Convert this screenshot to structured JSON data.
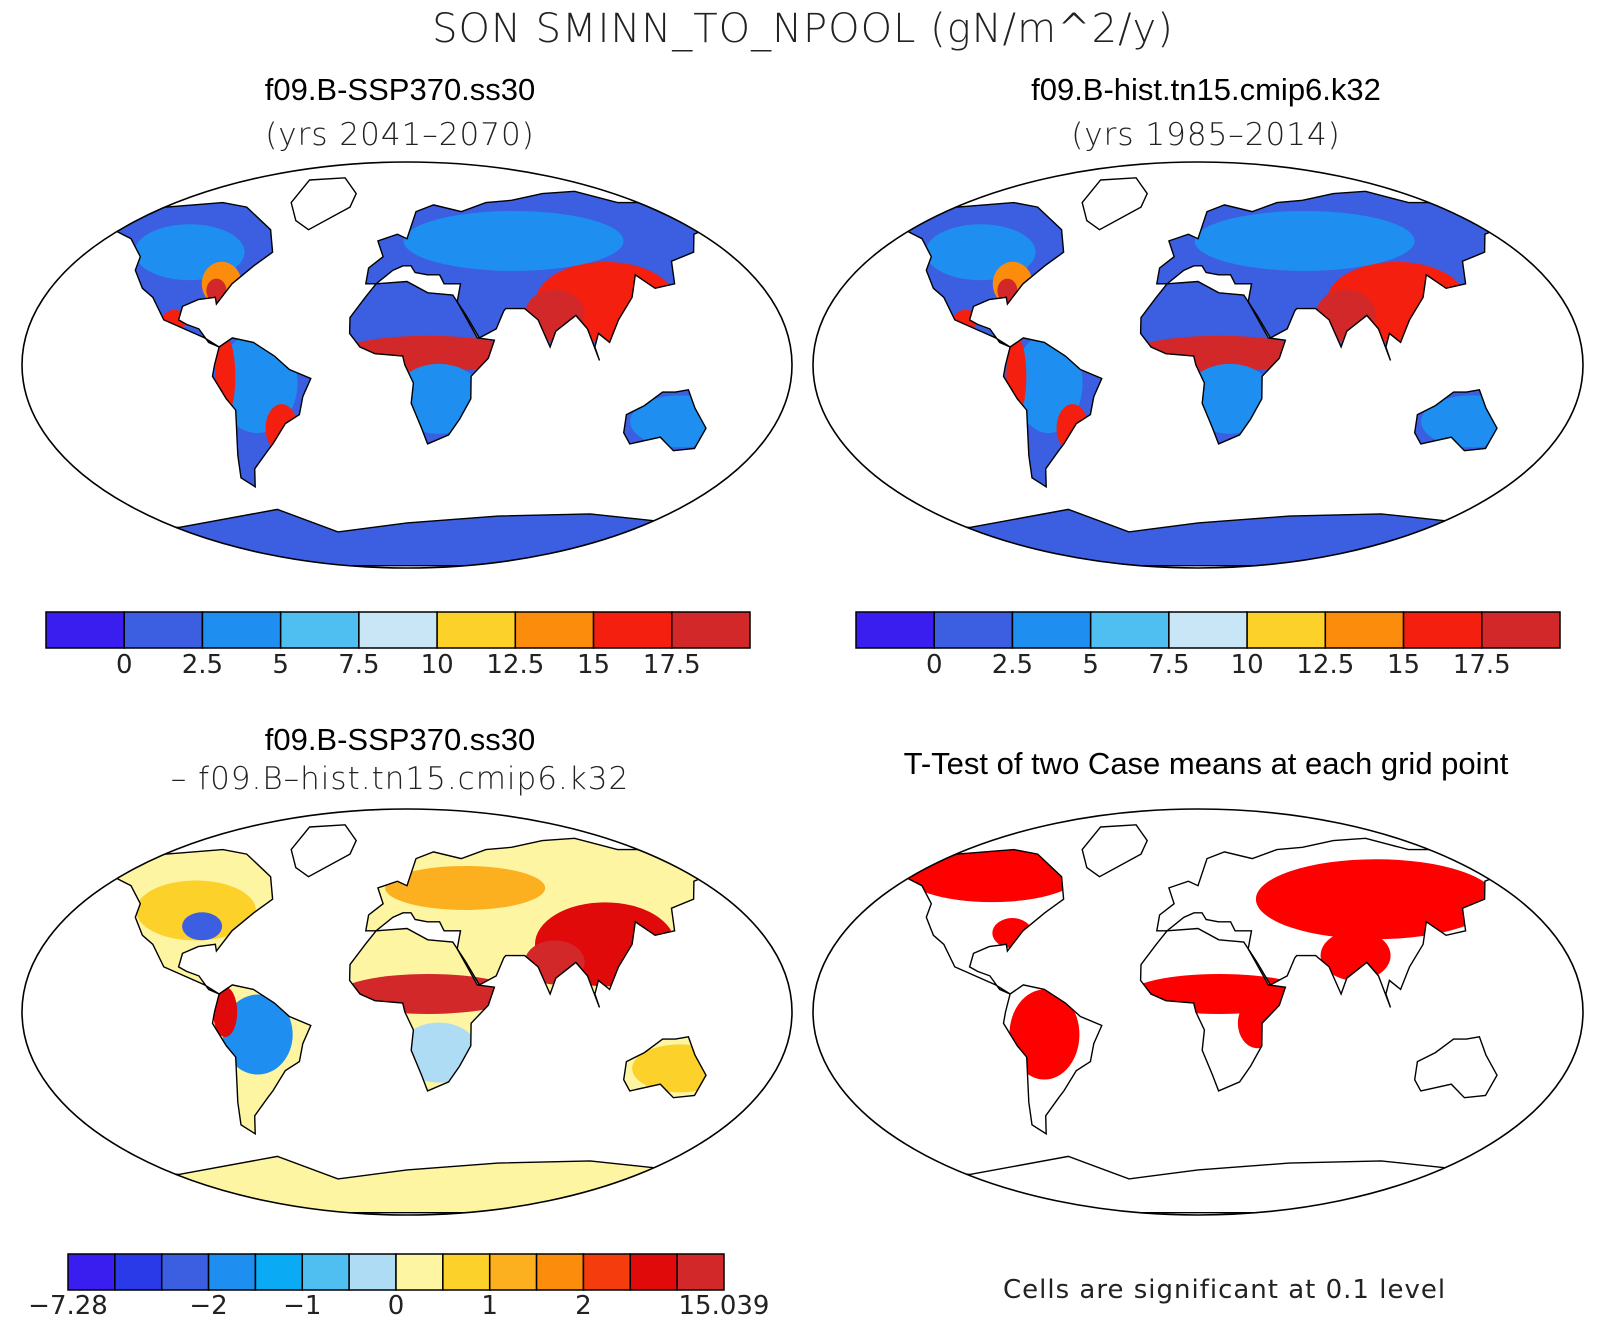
{
  "title": "SON SMINN_TO_NPOOL (gN/m^2/y)",
  "panels": [
    {
      "title": "f09.B-SSP370.ss30",
      "subtitle": "(yrs 2041–2070)"
    },
    {
      "title": "f09.B-hist.tn15.cmip6.k32",
      "subtitle": "(yrs 1985–2014)"
    },
    {
      "title": "f09.B-SSP370.ss30",
      "subtitle": "– f09.B–hist.tn15.cmip6.k32"
    },
    {
      "title": "T-Test of two Case means at each grid point",
      "subtitle": ""
    }
  ],
  "colorbar_abs": {
    "colors": [
      "#3a1ef0",
      "#3c5ee0",
      "#1e8ef0",
      "#4fbef0",
      "#c8e6f5",
      "#fcd12a",
      "#fc8c0c",
      "#f51f10",
      "#d3282a"
    ],
    "labels": [
      "0",
      "2.5",
      "5",
      "7.5",
      "10",
      "12.5",
      "15",
      "17.5"
    ]
  },
  "colorbar_diff": {
    "colors": [
      "#3a1ef0",
      "#2a3ae8",
      "#3c5ee0",
      "#1e8ef0",
      "#0aaaf5",
      "#4fbef0",
      "#afdcf5",
      "#fdf5a2",
      "#fcd12a",
      "#fcb020",
      "#fc8c0c",
      "#f53c0c",
      "#e00a0a",
      "#d3282a"
    ],
    "labels": [
      "−7.28",
      "−2",
      "−1",
      "0",
      "1",
      "2",
      "15.039"
    ],
    "label_index": [
      0,
      3,
      5,
      7,
      9,
      11,
      14
    ]
  },
  "footnote": "Cells are significant at 0.1 level",
  "map_colors": {
    "ocean": "#ffffff",
    "coast": "#000000"
  }
}
